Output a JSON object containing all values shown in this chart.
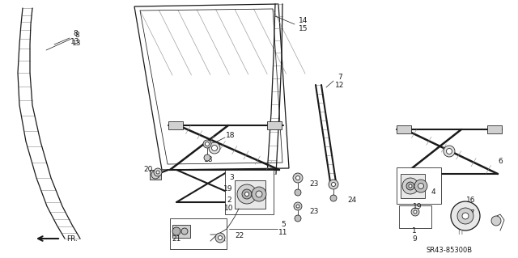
{
  "bg_color": "#ffffff",
  "diagram_code": "SR43-85300B",
  "dark": "#1a1a1a",
  "gray": "#888888",
  "mid": "#555555",
  "hatch_gray": "#aaaaaa"
}
